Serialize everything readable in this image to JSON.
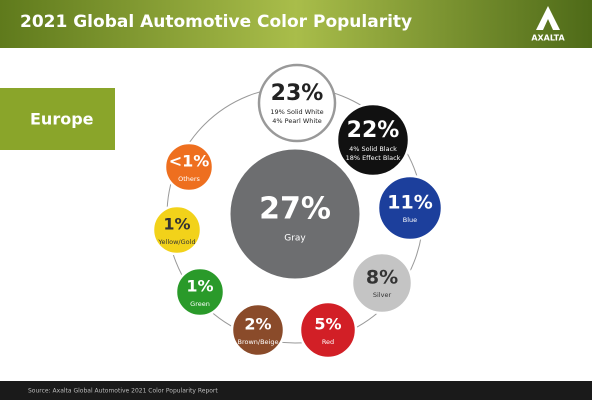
{
  "header": {
    "title": "2021 Global Automotive Color Popularity",
    "logo": "AXALTA"
  },
  "region": "Europe",
  "center": {
    "percent": "27%",
    "label": "Gray"
  },
  "items": [
    {
      "percent": "23%",
      "lines": [
        "19% Solid White",
        "4% Pearl White"
      ]
    },
    {
      "percent": "22%",
      "lines": [
        "4% Solid Black",
        "18% Effect Black"
      ]
    },
    {
      "percent": "11%",
      "lines": [
        "Blue"
      ]
    },
    {
      "percent": "8%",
      "lines": [
        "Silver"
      ]
    },
    {
      "percent": "5%",
      "lines": [
        "Red"
      ]
    },
    {
      "percent": "2%",
      "lines": [
        "Brown/Beige"
      ]
    },
    {
      "percent": "1%",
      "lines": [
        "Green"
      ]
    },
    {
      "percent": "1%",
      "lines": [
        "Yellow/Gold"
      ]
    },
    {
      "percent": "<1%",
      "lines": [
        "Others"
      ]
    }
  ],
  "footer": {
    "source": "Source: Axalta Global Automotive 2021 Color Popularity Report"
  }
}
